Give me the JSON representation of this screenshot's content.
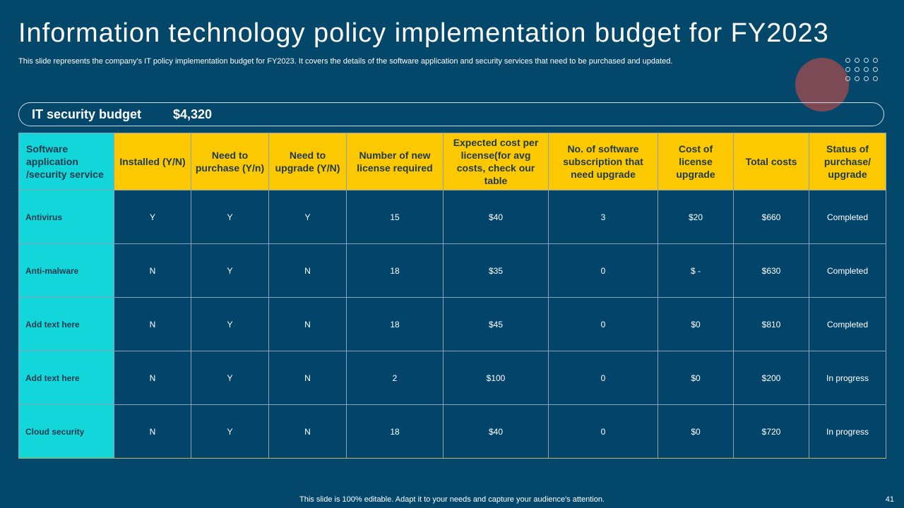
{
  "slide": {
    "title": "Information technology policy implementation budget for FY2023",
    "subtitle": "This slide represents the company's IT policy implementation budget for FY2023. It covers the details of the software application and security services that need to be purchased and updated.",
    "budget_label": "IT security budget",
    "budget_value": "$4,320",
    "footer": "This slide is 100% editable. Adapt it to your needs and capture your audience's attention.",
    "page_number": "41"
  },
  "table": {
    "headers": [
      "Software application /security service",
      "Installed (Y/N)",
      "Need to purchase (Y/n)",
      "Need to upgrade (Y/N)",
      "Number of new license required",
      "Expected cost per license(for avg costs, check our table",
      "No. of software subscription that need upgrade",
      "Cost of license upgrade",
      "Total costs",
      "Status of purchase/ upgrade"
    ],
    "rows": [
      [
        "Antivirus",
        "Y",
        "Y",
        "Y",
        "15",
        "$40",
        "3",
        "$20",
        "$660",
        "Completed"
      ],
      [
        "Anti-malware",
        "N",
        "Y",
        "N",
        "18",
        "$35",
        "0",
        "$ -",
        "$630",
        "Completed"
      ],
      [
        "Add text here",
        "N",
        "Y",
        "N",
        "18",
        "$45",
        "0",
        "$0",
        "$810",
        "Completed"
      ],
      [
        "Add text here",
        "N",
        "Y",
        "N",
        "2",
        "$100",
        "0",
        "$0",
        "$200",
        "In progress"
      ],
      [
        "Cloud security",
        "N",
        "Y",
        "N",
        "18",
        "$40",
        "0",
        "$0",
        "$720",
        "In progress"
      ]
    ]
  },
  "colors": {
    "background": "#03476b",
    "header_yellow": "#fcc800",
    "first_column_cyan": "#12d6d9",
    "deco_circle": "#7b4a55"
  }
}
